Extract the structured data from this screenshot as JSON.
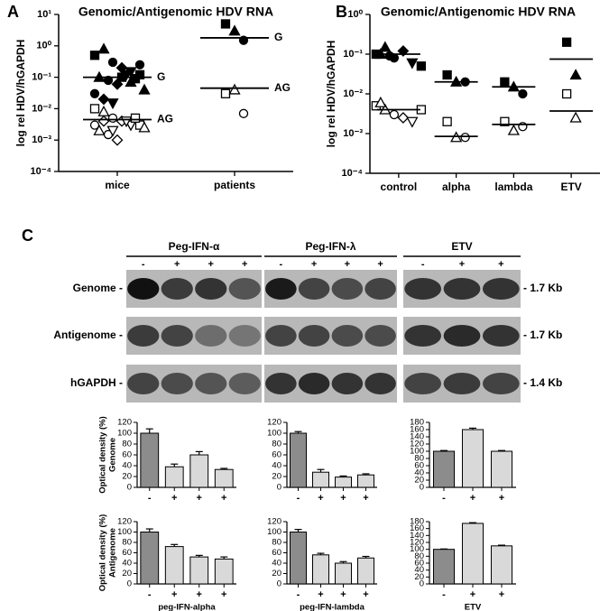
{
  "chart_data": [
    {
      "type": "scatter",
      "panel": "A",
      "title": "Genomic/Antigenomic HDV RNA",
      "y_label": "log rel HDV/hGAPDH",
      "log_scale": true,
      "ylim": [
        0.0001,
        10
      ],
      "yticks": [
        {
          "value": 0.0001,
          "label": "10⁻⁴"
        },
        {
          "value": 0.001,
          "label": "10⁻³"
        },
        {
          "value": 0.01,
          "label": "10⁻²"
        },
        {
          "value": 0.1,
          "label": "10⁻¹"
        },
        {
          "value": 1,
          "label": "10⁰"
        },
        {
          "value": 10,
          "label": "10¹"
        }
      ],
      "categories": [
        "mice",
        "patients"
      ],
      "line_labels": [
        "G",
        "AG"
      ],
      "markers": [
        "square",
        "triangle",
        "circle",
        "diamond",
        "triangle-down"
      ],
      "genomic_fill": "#000000",
      "antigenomic_fill": "#ffffff",
      "groups": [
        {
          "genomic": [
            0.5,
            0.8,
            0.3,
            0.2,
            0.15,
            0.12,
            0.1,
            0.08,
            0.06,
            0.12,
            0.09,
            0.04,
            0.03,
            0.02,
            0.015,
            0.1,
            0.07,
            0.25
          ],
          "antigenomic": [
            0.01,
            0.008,
            0.005,
            0.004,
            0.003,
            0.003,
            0.002,
            0.0015,
            0.001,
            0.004,
            0.005,
            0.0025,
            0.003,
            0.004,
            0.002
          ],
          "genomic_median": 0.1,
          "antigenomic_median": 0.0045
        },
        {
          "genomic": [
            5,
            3,
            1.5
          ],
          "antigenomic": [
            0.03,
            0.04,
            0.007
          ],
          "genomic_median": 1.8,
          "antigenomic_median": 0.045
        }
      ]
    },
    {
      "type": "scatter",
      "panel": "B",
      "title": "Genomic/Antigenomic HDV RNA",
      "y_label": "log rel HDV/hGAPDH",
      "log_scale": true,
      "ylim": [
        0.0001,
        1
      ],
      "yticks": [
        {
          "value": 0.0001,
          "label": "10⁻⁴"
        },
        {
          "value": 0.001,
          "label": "10⁻³"
        },
        {
          "value": 0.01,
          "label": "10⁻²"
        },
        {
          "value": 0.1,
          "label": "10⁻¹"
        },
        {
          "value": 1,
          "label": "10⁰"
        }
      ],
      "categories": [
        "control",
        "alpha",
        "lambda",
        "ETV"
      ],
      "markers": [
        "square",
        "triangle",
        "circle",
        "diamond",
        "triangle-down"
      ],
      "genomic_fill": "#000000",
      "antigenomic_fill": "#ffffff",
      "groups": [
        {
          "genomic": [
            0.1,
            0.15,
            0.08,
            0.12,
            0.06,
            0.05,
            0.1,
            0.09
          ],
          "antigenomic": [
            0.005,
            0.004,
            0.003,
            0.0025,
            0.002,
            0.004,
            0.006
          ],
          "genomic_median": 0.1,
          "antigenomic_median": 0.004
        },
        {
          "genomic": [
            0.03,
            0.02,
            0.02
          ],
          "antigenomic": [
            0.002,
            0.0008,
            0.0008
          ],
          "genomic_median": 0.02,
          "antigenomic_median": 0.00085
        },
        {
          "genomic": [
            0.02,
            0.015,
            0.01
          ],
          "antigenomic": [
            0.002,
            0.0012,
            0.0015
          ],
          "genomic_median": 0.015,
          "antigenomic_median": 0.0017
        },
        {
          "genomic": [
            0.2,
            0.03
          ],
          "antigenomic": [
            0.01,
            0.0025
          ],
          "genomic_median": 0.075,
          "antigenomic_median": 0.0037
        }
      ]
    },
    {
      "type": "bar",
      "y_label": [
        "Optical density (%)",
        "Genome"
      ],
      "categories": [
        "-",
        "+",
        "+",
        "+"
      ],
      "values": [
        100,
        38,
        60,
        33
      ],
      "errors": [
        8,
        5,
        6,
        2
      ],
      "colors": [
        "#8c8c8c",
        "#d9d9d9",
        "#d9d9d9",
        "#d9d9d9"
      ],
      "ylim": [
        0,
        120
      ],
      "yticks": [
        0,
        20,
        40,
        60,
        80,
        100,
        120
      ]
    },
    {
      "type": "bar",
      "categories": [
        "-",
        "+",
        "+",
        "+"
      ],
      "values": [
        100,
        28,
        19,
        23
      ],
      "errors": [
        3,
        5,
        2,
        2
      ],
      "colors": [
        "#8c8c8c",
        "#d9d9d9",
        "#d9d9d9",
        "#d9d9d9"
      ],
      "ylim": [
        0,
        120
      ],
      "yticks": [
        0,
        20,
        40,
        60,
        80,
        100,
        120
      ]
    },
    {
      "type": "bar",
      "categories": [
        "-",
        "+",
        "+"
      ],
      "values": [
        100,
        160,
        100
      ],
      "errors": [
        2,
        4,
        2
      ],
      "colors": [
        "#8c8c8c",
        "#d9d9d9",
        "#d9d9d9"
      ],
      "ylim": [
        0,
        180
      ],
      "yticks": [
        0,
        20,
        40,
        60,
        80,
        100,
        120,
        140,
        160,
        180
      ]
    },
    {
      "type": "bar",
      "y_label": [
        "Optical density (%)",
        "Antigenome"
      ],
      "x_label": "peg-IFN-alpha",
      "categories": [
        "-",
        "+",
        "+",
        "+"
      ],
      "values": [
        100,
        72,
        52,
        48
      ],
      "errors": [
        6,
        4,
        3,
        4
      ],
      "colors": [
        "#8c8c8c",
        "#d9d9d9",
        "#d9d9d9",
        "#d9d9d9"
      ],
      "ylim": [
        0,
        120
      ],
      "yticks": [
        0,
        20,
        40,
        60,
        80,
        100,
        120
      ]
    },
    {
      "type": "bar",
      "x_label": "peg-IFN-lambda",
      "categories": [
        "-",
        "+",
        "+",
        "+"
      ],
      "values": [
        100,
        56,
        40,
        50
      ],
      "errors": [
        5,
        3,
        3,
        3
      ],
      "colors": [
        "#8c8c8c",
        "#d9d9d9",
        "#d9d9d9",
        "#d9d9d9"
      ],
      "ylim": [
        0,
        120
      ],
      "yticks": [
        0,
        20,
        40,
        60,
        80,
        100,
        120
      ]
    },
    {
      "type": "bar",
      "x_label": "ETV",
      "categories": [
        "-",
        "+",
        "+"
      ],
      "values": [
        100,
        175,
        110
      ],
      "errors": [
        1,
        2,
        2
      ],
      "colors": [
        "#8c8c8c",
        "#d9d9d9",
        "#d9d9d9"
      ],
      "ylim": [
        0,
        180
      ],
      "yticks": [
        0,
        20,
        40,
        60,
        80,
        100,
        120,
        140,
        160,
        180
      ]
    }
  ],
  "blot": {
    "panel": "C",
    "groups": [
      {
        "name": "Peg-IFN-α",
        "lanes": [
          "-",
          "+",
          "+",
          "+"
        ]
      },
      {
        "name": "Peg-IFN-λ",
        "lanes": [
          "-",
          "+",
          "+",
          "+"
        ]
      },
      {
        "name": "ETV",
        "lanes": [
          "-",
          "+",
          "+"
        ]
      }
    ],
    "rows": [
      "Genome -",
      "Antigenome -",
      "hGAPDH -"
    ],
    "sizes": [
      "- 1.7 Kb",
      "- 1.7 Kb",
      "- 1.4 Kb"
    ]
  }
}
